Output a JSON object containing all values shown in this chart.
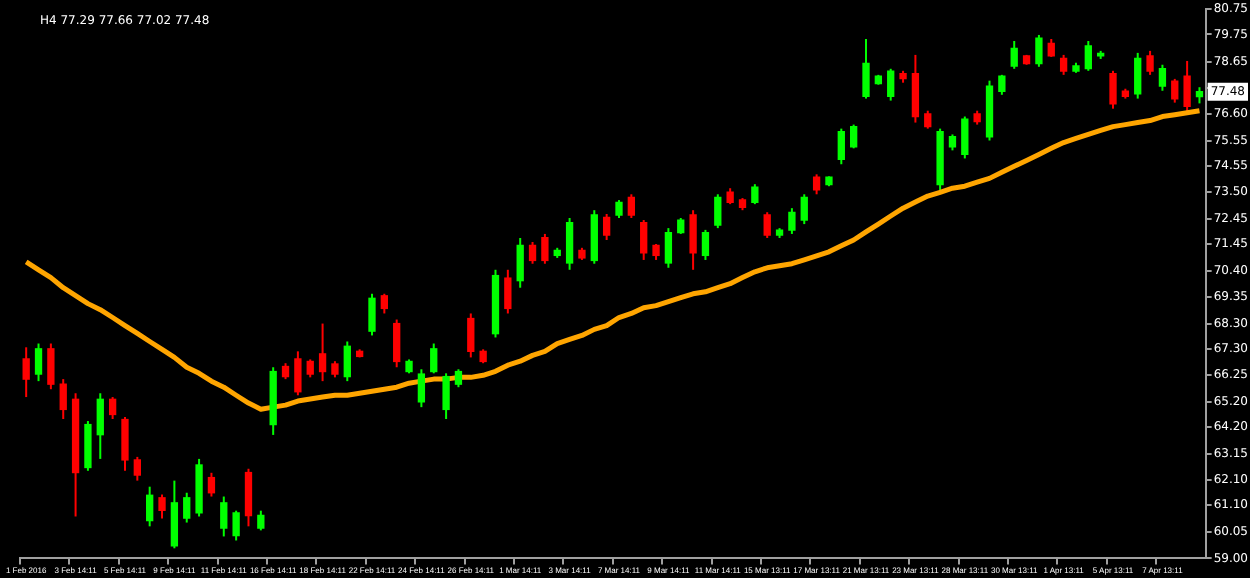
{
  "chart_data": {
    "type": "candlestick",
    "title": "H4 77.29 77.66 77.02 77.48",
    "categories": [
      "1 Feb 2016",
      null,
      null,
      null,
      "3 Feb 14:11",
      null,
      null,
      null,
      "5 Feb 14:11",
      null,
      null,
      null,
      "9 Feb 14:11",
      null,
      null,
      null,
      "11 Feb 14:11",
      null,
      null,
      null,
      "16 Feb 14:11",
      null,
      null,
      null,
      "18 Feb 14:11",
      null,
      null,
      null,
      "22 Feb 14:11",
      null,
      null,
      null,
      "24 Feb 14:11",
      null,
      null,
      null,
      "26 Feb 14:11",
      null,
      null,
      null,
      "1 Mar 14:11",
      null,
      null,
      null,
      "3 Mar 14:11",
      null,
      null,
      null,
      "7 Mar 14:11",
      null,
      null,
      null,
      "9 Mar 14:11",
      null,
      null,
      null,
      "11 Mar 14:11",
      null,
      null,
      null,
      "15 Mar 13:11",
      null,
      null,
      null,
      "17 Mar 13:11",
      null,
      null,
      null,
      "21 Mar 13:11",
      null,
      null,
      null,
      "23 Mar 13:11",
      null,
      null,
      null,
      "28 Mar 13:11",
      null,
      null,
      null,
      "30 Mar 13:11",
      null,
      null,
      null,
      "1 Apr 13:11",
      null,
      null,
      null,
      "5 Apr 13:11",
      null,
      null,
      null,
      "7 Apr 13:11",
      null,
      null,
      null
    ],
    "ohlc": [
      [
        66.9,
        67.36,
        65.39,
        66.1
      ],
      [
        66.3,
        67.51,
        66.02,
        67.3
      ],
      [
        67.3,
        67.51,
        65.7,
        65.9
      ],
      [
        65.9,
        66.1,
        64.52,
        64.9
      ],
      [
        65.3,
        65.54,
        60.66,
        62.4
      ],
      [
        62.6,
        64.44,
        62.47,
        64.3
      ],
      [
        63.9,
        65.54,
        62.94,
        65.3
      ],
      [
        65.3,
        65.39,
        64.52,
        64.7
      ],
      [
        64.5,
        64.6,
        62.47,
        62.9
      ],
      [
        62.9,
        63.02,
        62.08,
        62.3
      ],
      [
        60.5,
        61.84,
        60.27,
        61.5
      ],
      [
        61.4,
        61.53,
        60.58,
        60.9
      ],
      [
        59.5,
        62.08,
        59.4,
        61.2
      ],
      [
        60.6,
        61.6,
        60.42,
        61.4
      ],
      [
        60.8,
        62.94,
        60.66,
        62.7
      ],
      [
        62.2,
        62.39,
        61.45,
        61.6
      ],
      [
        60.2,
        61.45,
        59.87,
        61.2
      ],
      [
        59.9,
        60.89,
        59.71,
        60.8
      ],
      [
        62.4,
        62.55,
        60.27,
        60.7
      ],
      [
        60.2,
        60.89,
        60.11,
        60.7
      ],
      [
        64.3,
        66.57,
        63.89,
        66.4
      ],
      [
        66.6,
        66.73,
        66.1,
        66.2
      ],
      [
        66.9,
        67.2,
        65.46,
        65.6
      ],
      [
        66.8,
        66.88,
        66.17,
        66.3
      ],
      [
        67.1,
        68.3,
        66.02,
        66.4
      ],
      [
        66.7,
        66.81,
        66.17,
        66.3
      ],
      [
        66.2,
        67.59,
        66.02,
        67.4
      ],
      [
        67.2,
        67.28,
        66.96,
        67.0
      ],
      [
        68.0,
        69.48,
        67.83,
        69.3
      ],
      [
        69.4,
        69.48,
        68.7,
        68.9
      ],
      [
        68.3,
        68.46,
        66.57,
        66.8
      ],
      [
        66.4,
        66.88,
        66.33,
        66.8
      ],
      [
        65.2,
        66.49,
        64.99,
        66.3
      ],
      [
        66.4,
        67.51,
        66.33,
        67.3
      ],
      [
        64.9,
        66.33,
        64.52,
        66.2
      ],
      [
        65.9,
        66.49,
        65.78,
        66.4
      ],
      [
        68.5,
        68.7,
        66.96,
        67.2
      ],
      [
        67.2,
        67.28,
        66.73,
        66.8
      ],
      [
        67.9,
        70.43,
        67.75,
        70.2
      ],
      [
        70.1,
        70.43,
        68.7,
        68.9
      ],
      [
        70.0,
        71.69,
        69.72,
        71.4
      ],
      [
        71.4,
        71.53,
        70.67,
        70.8
      ],
      [
        71.7,
        71.85,
        70.67,
        70.8
      ],
      [
        71.0,
        71.3,
        70.9,
        71.2
      ],
      [
        70.7,
        72.48,
        70.43,
        72.3
      ],
      [
        71.2,
        71.3,
        70.82,
        70.9
      ],
      [
        70.8,
        72.79,
        70.67,
        72.6
      ],
      [
        72.5,
        72.64,
        71.61,
        71.8
      ],
      [
        72.6,
        73.19,
        72.48,
        73.1
      ],
      [
        73.3,
        73.42,
        72.48,
        72.6
      ],
      [
        72.3,
        72.4,
        70.82,
        71.1
      ],
      [
        71.4,
        71.45,
        70.82,
        71.0
      ],
      [
        70.7,
        72.08,
        70.51,
        71.9
      ],
      [
        71.9,
        72.48,
        71.85,
        72.4
      ],
      [
        72.6,
        72.79,
        70.43,
        71.1
      ],
      [
        71.0,
        72.01,
        70.82,
        71.9
      ],
      [
        72.2,
        73.42,
        72.08,
        73.3
      ],
      [
        73.5,
        73.66,
        73.03,
        73.1
      ],
      [
        73.2,
        73.27,
        72.79,
        72.9
      ],
      [
        73.1,
        73.82,
        73.03,
        73.7
      ],
      [
        72.6,
        72.71,
        71.69,
        71.8
      ],
      [
        71.8,
        72.08,
        71.69,
        72.0
      ],
      [
        72.0,
        72.87,
        71.85,
        72.7
      ],
      [
        72.4,
        73.42,
        72.24,
        73.3
      ],
      [
        74.1,
        74.21,
        73.42,
        73.6
      ],
      [
        73.8,
        74.13,
        73.74,
        74.1
      ],
      [
        74.8,
        76.02,
        74.61,
        75.9
      ],
      [
        75.3,
        76.18,
        75.24,
        76.1
      ],
      [
        77.3,
        79.57,
        77.21,
        78.6
      ],
      [
        77.8,
        78.15,
        77.76,
        78.1
      ],
      [
        77.3,
        78.39,
        77.13,
        78.3
      ],
      [
        78.2,
        78.31,
        77.84,
        78.0
      ],
      [
        78.2,
        78.94,
        76.26,
        76.5
      ],
      [
        76.6,
        76.73,
        76.02,
        76.1
      ],
      [
        73.8,
        76.02,
        73.58,
        75.9
      ],
      [
        75.3,
        75.79,
        75.16,
        75.7
      ],
      [
        75.0,
        76.5,
        74.84,
        76.4
      ],
      [
        76.6,
        76.73,
        76.18,
        76.3
      ],
      [
        75.7,
        77.92,
        75.55,
        77.7
      ],
      [
        77.5,
        78.15,
        77.36,
        78.1
      ],
      [
        78.5,
        79.49,
        78.39,
        79.2
      ],
      [
        78.9,
        78.94,
        78.55,
        78.6
      ],
      [
        78.6,
        79.73,
        78.47,
        79.6
      ],
      [
        79.4,
        79.57,
        78.86,
        78.9
      ],
      [
        78.8,
        78.94,
        78.15,
        78.3
      ],
      [
        78.3,
        78.63,
        78.23,
        78.5
      ],
      [
        78.4,
        79.49,
        78.31,
        79.3
      ],
      [
        78.9,
        79.1,
        78.78,
        79.0
      ],
      [
        78.2,
        78.31,
        76.81,
        77.0
      ],
      [
        77.5,
        77.6,
        77.21,
        77.3
      ],
      [
        77.4,
        79.02,
        77.21,
        78.8
      ],
      [
        78.9,
        79.1,
        78.15,
        78.3
      ],
      [
        77.7,
        78.55,
        77.52,
        78.4
      ],
      [
        77.9,
        77.99,
        77.05,
        77.2
      ],
      [
        78.1,
        78.7,
        76.57,
        76.9
      ],
      [
        77.29,
        77.66,
        77.02,
        77.48
      ]
    ],
    "colors": [
      "#ff0000",
      "#00ff00",
      "#ff0000",
      "#ff0000",
      "#ff0000",
      "#00ff00",
      "#00ff00",
      "#ff0000",
      "#ff0000",
      "#ff0000",
      "#00ff00",
      "#ff0000",
      "#00ff00",
      "#00ff00",
      "#00ff00",
      "#ff0000",
      "#00ff00",
      "#00ff00",
      "#ff0000",
      "#00ff00",
      "#00ff00",
      "#ff0000",
      "#ff0000",
      "#ff0000",
      "#ff0000",
      "#ff0000",
      "#00ff00",
      "#ff0000",
      "#00ff00",
      "#ff0000",
      "#ff0000",
      "#00ff00",
      "#00ff00",
      "#00ff00",
      "#00ff00",
      "#00ff00",
      "#ff0000",
      "#ff0000",
      "#00ff00",
      "#ff0000",
      "#00ff00",
      "#ff0000",
      "#ff0000",
      "#00ff00",
      "#00ff00",
      "#ff0000",
      "#00ff00",
      "#ff0000",
      "#00ff00",
      "#ff0000",
      "#ff0000",
      "#ff0000",
      "#00ff00",
      "#00ff00",
      "#ff0000",
      "#00ff00",
      "#00ff00",
      "#ff0000",
      "#ff0000",
      "#00ff00",
      "#ff0000",
      "#00ff00",
      "#00ff00",
      "#00ff00",
      "#ff0000",
      "#00ff00",
      "#00ff00",
      "#00ff00",
      "#00ff00",
      "#00ff00",
      "#00ff00",
      "#ff0000",
      "#ff0000",
      "#ff0000",
      "#00ff00",
      "#00ff00",
      "#00ff00",
      "#ff0000",
      "#00ff00",
      "#00ff00",
      "#00ff00",
      "#ff0000",
      "#00ff00",
      "#ff0000",
      "#ff0000",
      "#00ff00",
      "#00ff00",
      "#00ff00",
      "#ff0000",
      "#ff0000",
      "#00ff00",
      "#ff0000",
      "#00ff00",
      "#ff0000",
      "#ff0000",
      "#00ff00"
    ],
    "series": [
      {
        "type": "line",
        "color": "#ffa500",
        "values": [
          70.74,
          70.43,
          70.12,
          69.72,
          69.41,
          69.09,
          68.85,
          68.54,
          68.22,
          67.91,
          67.59,
          67.28,
          66.96,
          66.57,
          66.33,
          66.02,
          65.78,
          65.46,
          65.15,
          64.91,
          64.99,
          65.07,
          65.23,
          65.31,
          65.39,
          65.46,
          65.46,
          65.54,
          65.62,
          65.7,
          65.78,
          65.94,
          66.02,
          66.1,
          66.1,
          66.17,
          66.17,
          66.25,
          66.41,
          66.65,
          66.81,
          67.04,
          67.2,
          67.51,
          67.67,
          67.83,
          68.07,
          68.22,
          68.54,
          68.7,
          68.93,
          69.01,
          69.17,
          69.33,
          69.48,
          69.56,
          69.72,
          69.88,
          70.12,
          70.35,
          70.51,
          70.59,
          70.67,
          70.82,
          70.98,
          71.14,
          71.38,
          71.61,
          71.93,
          72.24,
          72.56,
          72.87,
          73.11,
          73.35,
          73.5,
          73.66,
          73.74,
          73.9,
          74.05,
          74.29,
          74.53,
          74.76,
          75.0,
          75.24,
          75.47,
          75.63,
          75.79,
          75.95,
          76.1,
          76.18,
          76.26,
          76.34,
          76.5,
          76.57,
          76.65,
          76.73
        ]
      }
    ],
    "ylim": [
      59.0,
      80.75
    ],
    "yticks": [
      {
        "value": 59.0,
        "label": "59.00"
      },
      {
        "value": 60.05,
        "label": "60.05"
      },
      {
        "value": 61.1,
        "label": "61.10"
      },
      {
        "value": 62.1,
        "label": "62.10"
      },
      {
        "value": 63.15,
        "label": "63.15"
      },
      {
        "value": 64.2,
        "label": "64.20"
      },
      {
        "value": 65.2,
        "label": "65.20"
      },
      {
        "value": 66.25,
        "label": "66.25"
      },
      {
        "value": 67.3,
        "label": "67.30"
      },
      {
        "value": 68.3,
        "label": "68.30"
      },
      {
        "value": 69.35,
        "label": "69.35"
      },
      {
        "value": 70.4,
        "label": "70.40"
      },
      {
        "value": 71.45,
        "label": "71.45"
      },
      {
        "value": 72.45,
        "label": "72.45"
      },
      {
        "value": 73.5,
        "label": "73.50"
      },
      {
        "value": 74.55,
        "label": "74.55"
      },
      {
        "value": 75.55,
        "label": "75.55"
      },
      {
        "value": 76.6,
        "label": "76.60"
      },
      {
        "value": 77.64,
        "label": null
      },
      {
        "value": 78.65,
        "label": "78.65"
      },
      {
        "value": 79.75,
        "label": "79.75"
      },
      {
        "value": 80.75,
        "label": "80.75"
      }
    ],
    "grid": false,
    "legend": false,
    "marker": "none",
    "annotations": [
      {
        "text": "77.48",
        "y": 77.48
      }
    ]
  }
}
